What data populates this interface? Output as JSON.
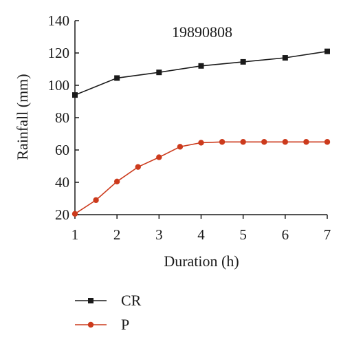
{
  "chart_data": {
    "type": "line",
    "annotation": "19890808",
    "xlabel": "Duration (h)",
    "ylabel": "Rainfall (mm)",
    "xlim": [
      1,
      7
    ],
    "ylim": [
      20,
      140
    ],
    "x_ticks": [
      1,
      2,
      3,
      4,
      5,
      6,
      7
    ],
    "y_ticks": [
      20,
      40,
      60,
      80,
      100,
      120,
      140
    ],
    "grid": false,
    "legend_position": "bottom-left",
    "series": [
      {
        "name": "CR",
        "color": "#1a1a1a",
        "marker": "square",
        "x": [
          1,
          2,
          3,
          4,
          5,
          6,
          7
        ],
        "values": [
          94,
          104.5,
          108,
          112,
          114.5,
          117,
          121
        ]
      },
      {
        "name": "P",
        "color": "#cc3a1c",
        "marker": "circle",
        "x": [
          1,
          1.5,
          2,
          2.5,
          3,
          3.5,
          4,
          4.5,
          5,
          5.5,
          6,
          6.5,
          7
        ],
        "values": [
          20.5,
          29,
          40.5,
          49.5,
          55.5,
          62,
          64.5,
          65,
          65,
          65,
          65,
          65,
          65
        ]
      }
    ]
  }
}
